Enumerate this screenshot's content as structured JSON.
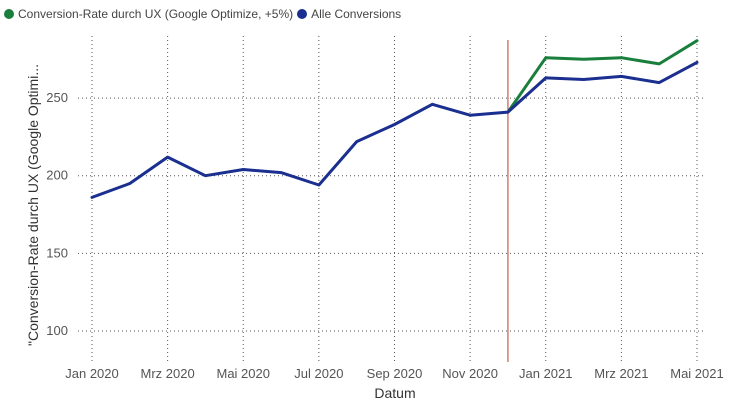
{
  "chart_data": {
    "type": "line",
    "xlabel": "Datum",
    "ylabel": "\"Conversion-Rate durch UX (Google Optimi...",
    "x": [
      "2020-01",
      "2020-02",
      "2020-03",
      "2020-04",
      "2020-05",
      "2020-06",
      "2020-07",
      "2020-08",
      "2020-09",
      "2020-10",
      "2020-11",
      "2020-12",
      "2021-01",
      "2021-02",
      "2021-03",
      "2021-04",
      "2021-05"
    ],
    "x_tick_labels": [
      {
        "x": "2020-01",
        "label": "Jan 2020"
      },
      {
        "x": "2020-03",
        "label": "Mrz 2020"
      },
      {
        "x": "2020-05",
        "label": "Mai 2020"
      },
      {
        "x": "2020-07",
        "label": "Jul 2020"
      },
      {
        "x": "2020-09",
        "label": "Sep 2020"
      },
      {
        "x": "2020-11",
        "label": "Nov 2020"
      },
      {
        "x": "2021-01",
        "label": "Jan 2021"
      },
      {
        "x": "2021-03",
        "label": "Mrz 2021"
      },
      {
        "x": "2021-05",
        "label": "Mai 2021"
      }
    ],
    "y_ticks": [
      100,
      150,
      200,
      250
    ],
    "ylim": [
      80,
      290
    ],
    "grid": "dotted",
    "legend_position": "top-left",
    "reference_line": {
      "x": "2020-12",
      "color": "#c0392b"
    },
    "series": [
      {
        "name": "Conversion-Rate durch UX (Google Optimize, +5%)",
        "color": "#1a7f3c",
        "x": [
          "2020-12",
          "2021-01",
          "2021-02",
          "2021-03",
          "2021-04",
          "2021-05"
        ],
        "values": [
          241,
          276,
          275,
          276,
          272,
          287
        ]
      },
      {
        "name": "Alle Conversions",
        "color": "#1a2f8f",
        "x": [
          "2020-01",
          "2020-02",
          "2020-03",
          "2020-04",
          "2020-05",
          "2020-06",
          "2020-07",
          "2020-08",
          "2020-09",
          "2020-10",
          "2020-11",
          "2020-12",
          "2021-01",
          "2021-02",
          "2021-03",
          "2021-04",
          "2021-05"
        ],
        "values": [
          186,
          195,
          212,
          200,
          204,
          202,
          194,
          222,
          233,
          246,
          239,
          241,
          263,
          262,
          264,
          260,
          273
        ]
      }
    ]
  }
}
